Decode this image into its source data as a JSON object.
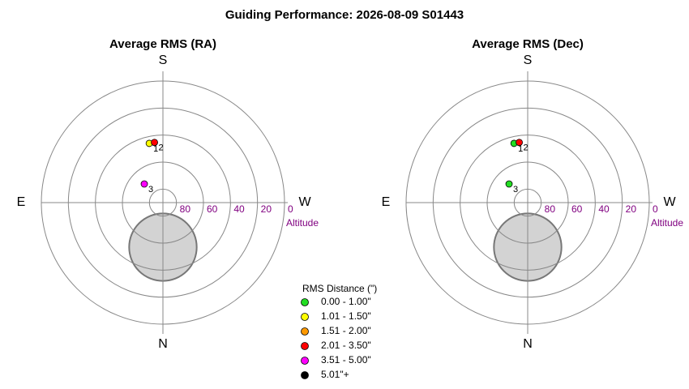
{
  "title": "Guiding Performance: 2026-08-09 S01443",
  "legend": {
    "title": "RMS Distance (\")",
    "items": [
      {
        "label": "0.00 - 1.00\"",
        "color": "#22dd22"
      },
      {
        "label": "1.01 - 1.50\"",
        "color": "#ffff00"
      },
      {
        "label": "1.51 - 2.00\"",
        "color": "#ff9900"
      },
      {
        "label": "2.01 - 3.50\"",
        "color": "#ff0000"
      },
      {
        "label": "3.51 - 5.00\"",
        "color": "#ff00ff"
      },
      {
        "label": "5.01\"+",
        "color": "#000000"
      }
    ]
  },
  "chart_data": [
    {
      "type": "polar",
      "title": "Average RMS (RA)",
      "direction_labels": [
        "N",
        "E",
        "S",
        "W"
      ],
      "r_label": "Altitude",
      "rlim": [
        90,
        0
      ],
      "rticks": [
        80,
        60,
        40,
        20,
        0
      ],
      "region": {
        "azimuth": 0,
        "altitude": 57,
        "size": 25,
        "color": "#d3d3d3"
      },
      "points": [
        {
          "label": "1",
          "azimuth": 167,
          "altitude": 45,
          "color": "#ffff00"
        },
        {
          "label": "2",
          "azimuth": 172,
          "altitude": 45,
          "color": "#ff0000"
        },
        {
          "label": "3",
          "azimuth": 135,
          "altitude": 70.5,
          "color": "#ff00ff"
        }
      ]
    },
    {
      "type": "polar",
      "title": "Average RMS (Dec)",
      "direction_labels": [
        "N",
        "E",
        "S",
        "W"
      ],
      "r_label": "Altitude",
      "rlim": [
        90,
        0
      ],
      "rticks": [
        80,
        60,
        40,
        20,
        0
      ],
      "region": {
        "azimuth": 0,
        "altitude": 57,
        "size": 25,
        "color": "#d3d3d3"
      },
      "points": [
        {
          "label": "1",
          "azimuth": 167,
          "altitude": 45,
          "color": "#22dd22"
        },
        {
          "label": "2",
          "azimuth": 172,
          "altitude": 45,
          "color": "#ff0000"
        },
        {
          "label": "3",
          "azimuth": 135,
          "altitude": 70.5,
          "color": "#22dd22"
        }
      ]
    }
  ]
}
